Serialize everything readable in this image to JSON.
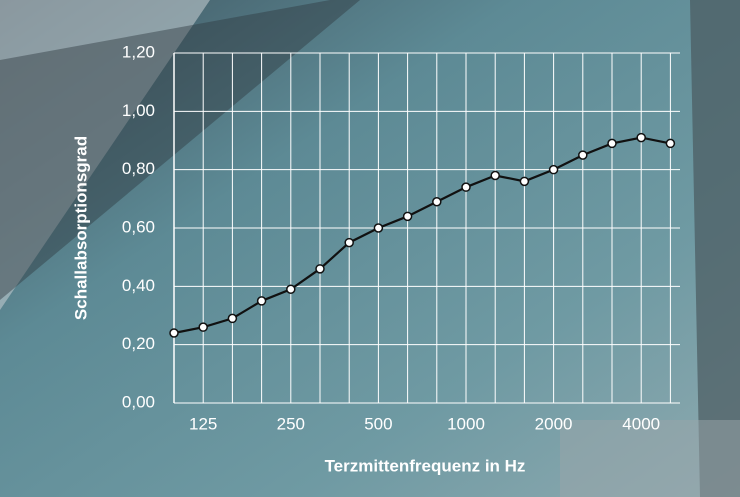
{
  "chart_data": {
    "type": "line",
    "x_label": "Terzmittenfrequenz in Hz",
    "y_label": "Schallabsorptionsgrad",
    "categories": [
      null,
      "125",
      null,
      null,
      "250",
      null,
      null,
      "500",
      null,
      null,
      "1000",
      null,
      null,
      "2000",
      null,
      null,
      "4000",
      null
    ],
    "values": [
      0.24,
      0.26,
      0.29,
      0.35,
      0.39,
      0.46,
      0.55,
      0.6,
      0.64,
      0.69,
      0.74,
      0.78,
      0.76,
      0.8,
      0.85,
      0.89,
      0.91,
      0.89
    ],
    "color": "#111111",
    "ylim": [
      0,
      1.2
    ],
    "yticks": [
      {
        "value": 0,
        "label": "0,00"
      },
      {
        "value": 0.2,
        "label": "0,20"
      },
      {
        "value": 0.4,
        "label": "0,40"
      },
      {
        "value": 0.6,
        "label": "0,60"
      },
      {
        "value": 0.8,
        "label": "0,80"
      },
      {
        "value": 1.0,
        "label": "1,00"
      },
      {
        "value": 1.2,
        "label": "1,20"
      }
    ],
    "grid": true
  }
}
